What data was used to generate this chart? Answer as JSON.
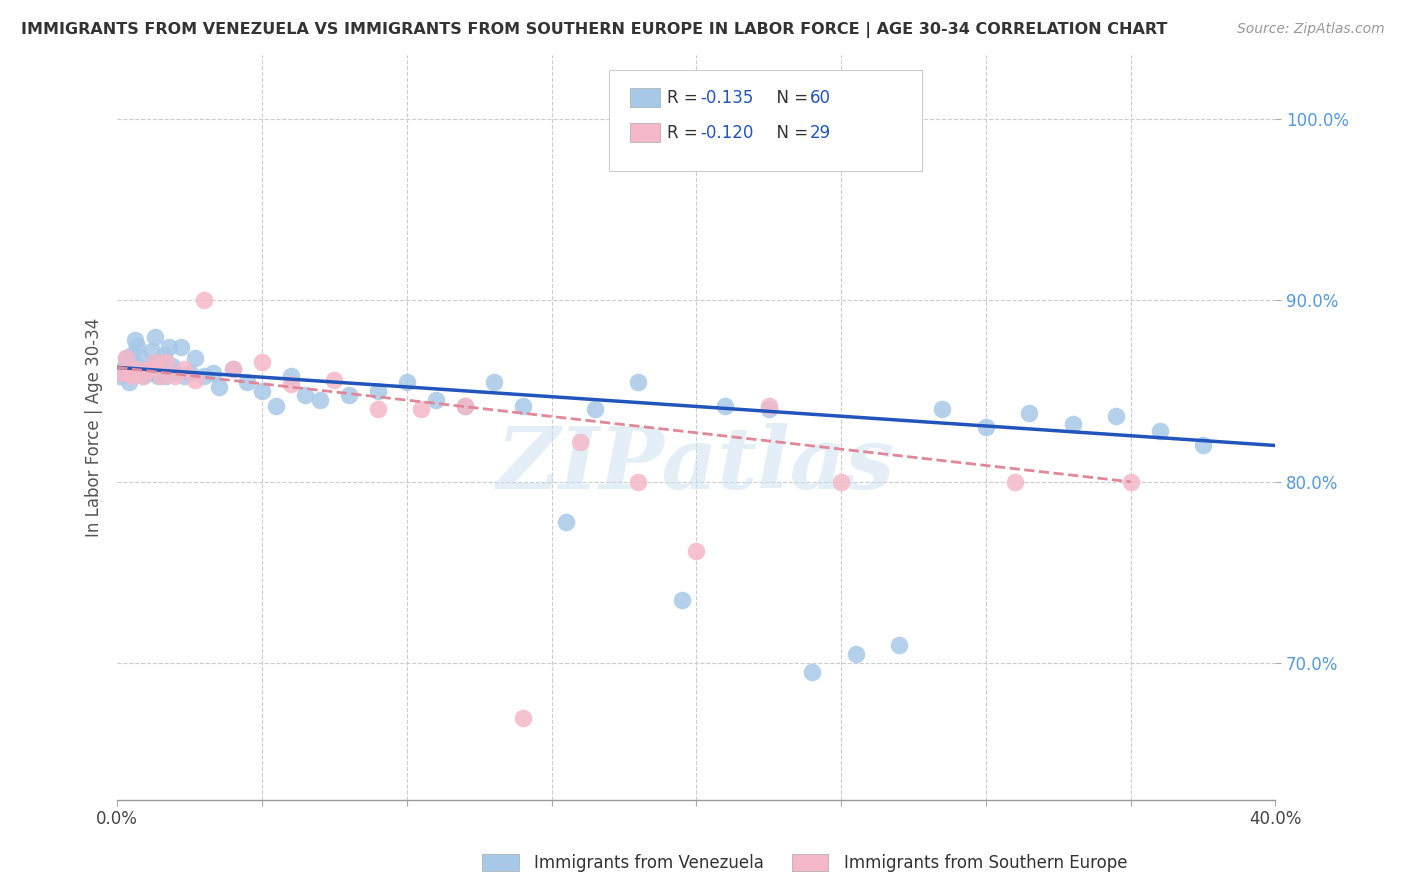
{
  "title": "IMMIGRANTS FROM VENEZUELA VS IMMIGRANTS FROM SOUTHERN EUROPE IN LABOR FORCE | AGE 30-34 CORRELATION CHART",
  "source": "Source: ZipAtlas.com",
  "ylabel": "In Labor Force | Age 30-34",
  "xlim": [
    0.0,
    0.4
  ],
  "ylim": [
    0.625,
    1.035
  ],
  "legend_r1": "R = ",
  "legend_v1": "-0.135",
  "legend_n1": "N = 60",
  "legend_r2": "R = ",
  "legend_v2": "-0.120",
  "legend_n2": "N = 29",
  "color_venezuela": "#a8c8e8",
  "color_s_europe": "#f5b8c8",
  "trend_color_venezuela": "#2255bb",
  "trend_color_s_europe": "#e08898",
  "watermark": "ZIPatlas",
  "scatter_venezuela_x": [
    0.001,
    0.002,
    0.003,
    0.004,
    0.005,
    0.005,
    0.006,
    0.007,
    0.007,
    0.008,
    0.009,
    0.01,
    0.011,
    0.012,
    0.013,
    0.013,
    0.014,
    0.015,
    0.016,
    0.017,
    0.018,
    0.019,
    0.02,
    0.022,
    0.023,
    0.025,
    0.027,
    0.03,
    0.033,
    0.035,
    0.04,
    0.045,
    0.05,
    0.055,
    0.06,
    0.065,
    0.07,
    0.08,
    0.09,
    0.1,
    0.11,
    0.12,
    0.13,
    0.14,
    0.155,
    0.165,
    0.18,
    0.195,
    0.21,
    0.225,
    0.24,
    0.255,
    0.27,
    0.285,
    0.3,
    0.315,
    0.33,
    0.345,
    0.36,
    0.375
  ],
  "scatter_venezuela_y": [
    0.858,
    0.862,
    0.868,
    0.855,
    0.86,
    0.87,
    0.878,
    0.864,
    0.875,
    0.869,
    0.858,
    0.862,
    0.86,
    0.872,
    0.866,
    0.88,
    0.858,
    0.862,
    0.87,
    0.858,
    0.874,
    0.864,
    0.86,
    0.874,
    0.858,
    0.86,
    0.868,
    0.858,
    0.86,
    0.852,
    0.862,
    0.855,
    0.85,
    0.842,
    0.858,
    0.848,
    0.845,
    0.848,
    0.85,
    0.855,
    0.845,
    0.842,
    0.855,
    0.842,
    0.778,
    0.84,
    0.855,
    0.735,
    0.842,
    0.84,
    0.695,
    0.705,
    0.71,
    0.84,
    0.83,
    0.838,
    0.832,
    0.836,
    0.828,
    0.82
  ],
  "scatter_s_europe_x": [
    0.001,
    0.003,
    0.004,
    0.005,
    0.007,
    0.009,
    0.011,
    0.013,
    0.015,
    0.017,
    0.02,
    0.023,
    0.027,
    0.03,
    0.04,
    0.05,
    0.06,
    0.075,
    0.09,
    0.105,
    0.12,
    0.14,
    0.16,
    0.18,
    0.2,
    0.225,
    0.25,
    0.31,
    0.35
  ],
  "scatter_s_europe_y": [
    0.86,
    0.868,
    0.86,
    0.858,
    0.862,
    0.858,
    0.862,
    0.866,
    0.858,
    0.866,
    0.858,
    0.862,
    0.856,
    0.9,
    0.862,
    0.866,
    0.854,
    0.856,
    0.84,
    0.84,
    0.842,
    0.67,
    0.822,
    0.8,
    0.762,
    0.842,
    0.8,
    0.8,
    0.8
  ],
  "trend_ven_x0": 0.0,
  "trend_ven_x1": 0.4,
  "trend_ven_y0": 0.863,
  "trend_ven_y1": 0.82,
  "trend_seu_x0": 0.0,
  "trend_seu_x1": 0.35,
  "trend_seu_y0": 0.863,
  "trend_seu_y1": 0.8
}
